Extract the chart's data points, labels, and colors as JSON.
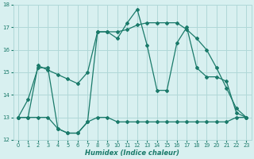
{
  "xlabel": "Humidex (Indice chaleur)",
  "x_values": [
    0,
    1,
    2,
    3,
    4,
    5,
    6,
    7,
    8,
    9,
    10,
    11,
    12,
    13,
    14,
    15,
    16,
    17,
    18,
    19,
    20,
    21,
    22,
    23
  ],
  "line1": [
    13.0,
    13.8,
    15.2,
    15.2,
    12.5,
    12.3,
    12.3,
    12.8,
    16.8,
    16.8,
    16.5,
    17.2,
    17.8,
    16.2,
    14.2,
    14.2,
    16.3,
    17.0,
    15.2,
    14.8,
    14.8,
    14.6,
    13.2,
    13.0
  ],
  "line2": [
    13.0,
    13.0,
    15.3,
    15.1,
    14.9,
    14.7,
    14.5,
    15.0,
    16.8,
    16.8,
    16.8,
    16.9,
    17.1,
    17.2,
    17.2,
    17.2,
    17.2,
    16.9,
    16.5,
    16.0,
    15.2,
    14.3,
    13.4,
    13.0
  ],
  "line3": [
    13.0,
    13.0,
    13.0,
    13.0,
    12.5,
    12.3,
    12.3,
    12.8,
    13.0,
    13.0,
    12.8,
    12.8,
    12.8,
    12.8,
    12.8,
    12.8,
    12.8,
    12.8,
    12.8,
    12.8,
    12.8,
    12.8,
    13.0,
    13.0
  ],
  "color": "#1a7a6a",
  "bg_color": "#d8f0f0",
  "grid_color": "#b0d8d8",
  "ylim": [
    12,
    18
  ],
  "xlim": [
    -0.5,
    23.5
  ],
  "yticks": [
    12,
    13,
    14,
    15,
    16,
    17,
    18
  ],
  "xticks": [
    0,
    1,
    2,
    3,
    4,
    5,
    6,
    7,
    8,
    9,
    10,
    11,
    12,
    13,
    14,
    15,
    16,
    17,
    18,
    19,
    20,
    21,
    22,
    23
  ]
}
